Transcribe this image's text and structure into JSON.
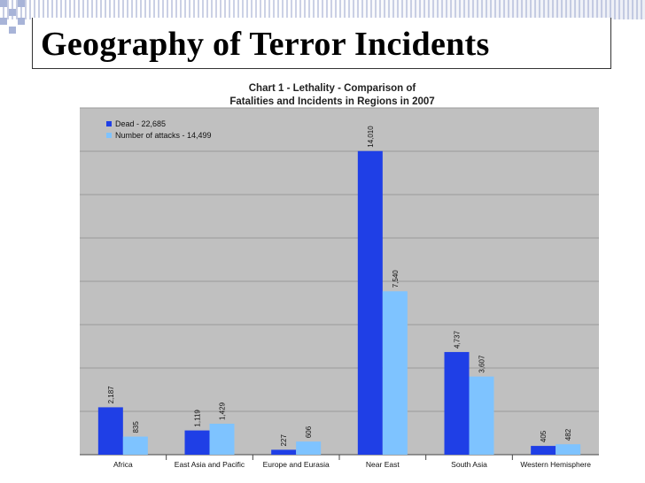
{
  "slide": {
    "title": "Geography of Terror Incidents"
  },
  "colors": {
    "dead": "#1f3fe6",
    "attacks": "#7ec3ff",
    "plot_bg": "#c0c0c0",
    "deco": "#a8b4d8"
  },
  "chart_data": {
    "type": "bar",
    "title_line1": "Chart 1 - Lethality - Comparison of",
    "title_line2": "Fatalities and Incidents in Regions in 2007",
    "categories": [
      "Africa",
      "East Asia and Pacific",
      "Europe and Eurasia",
      "Near East",
      "South Asia",
      "Western Hemisphere"
    ],
    "series": [
      {
        "name": "Dead - 22,685",
        "values": [
          2187,
          1119,
          227,
          14010,
          4737,
          405
        ],
        "labels": [
          "2,187",
          "1,119",
          "227",
          "14,010",
          "4,737",
          "405"
        ]
      },
      {
        "name": "Number of attacks - 14,499",
        "values": [
          835,
          1429,
          606,
          7540,
          3607,
          482
        ],
        "labels": [
          "835",
          "1,429",
          "606",
          "7,540",
          "3,607",
          "482"
        ]
      }
    ],
    "ylim": [
      0,
      16000
    ],
    "gridlines": true,
    "legend": "top-left"
  }
}
